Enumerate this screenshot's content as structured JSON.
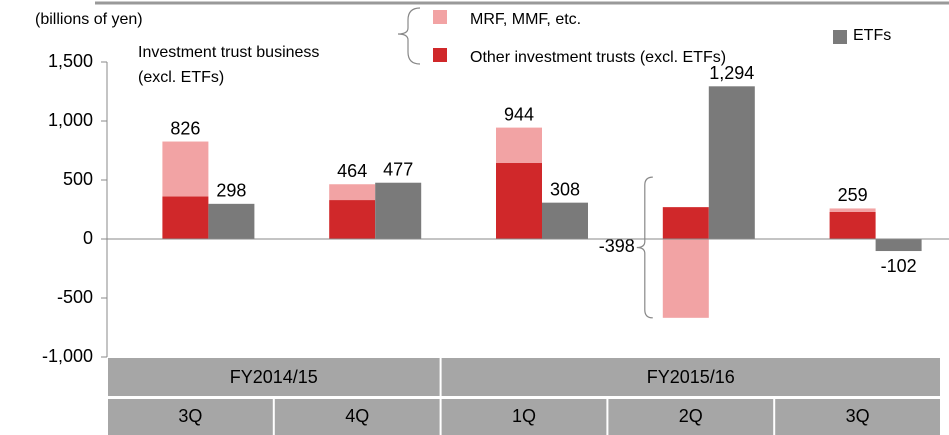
{
  "chart_data": {
    "type": "bar",
    "unit_label": "(billions of yen)",
    "legend_group_label": [
      "Investment trust business",
      "(excl. ETFs)"
    ],
    "categories": [
      "3Q",
      "4Q",
      "1Q",
      "2Q",
      "3Q"
    ],
    "groups": [
      {
        "label": "FY2014/15",
        "span": 2
      },
      {
        "label": "FY2015/16",
        "span": 3
      }
    ],
    "series": [
      {
        "name": "Other investment trusts (excl. ETFs)",
        "color": "#d0282a",
        "values": [
          360,
          330,
          644,
          270,
          229
        ]
      },
      {
        "name": "MRF, MMF, etc.",
        "color": "#f2a3a4",
        "values": [
          466,
          134,
          300,
          -668,
          30
        ]
      },
      {
        "name": "ETFs",
        "color": "#7a7a7a",
        "values": [
          298,
          477,
          308,
          1294,
          -102
        ],
        "value_labels": [
          "298",
          "477",
          "308",
          "1,294",
          "-102"
        ]
      }
    ],
    "totals": [
      826,
      464,
      944,
      -398,
      259
    ],
    "ylim": [
      -1000,
      1500
    ],
    "yticks": [
      {
        "value": -1000,
        "label": "-1,000"
      },
      {
        "value": -500,
        "label": "-500"
      },
      0,
      500,
      {
        "value": 1000,
        "label": "1,000"
      },
      {
        "value": 1500,
        "label": "1,500"
      }
    ]
  }
}
